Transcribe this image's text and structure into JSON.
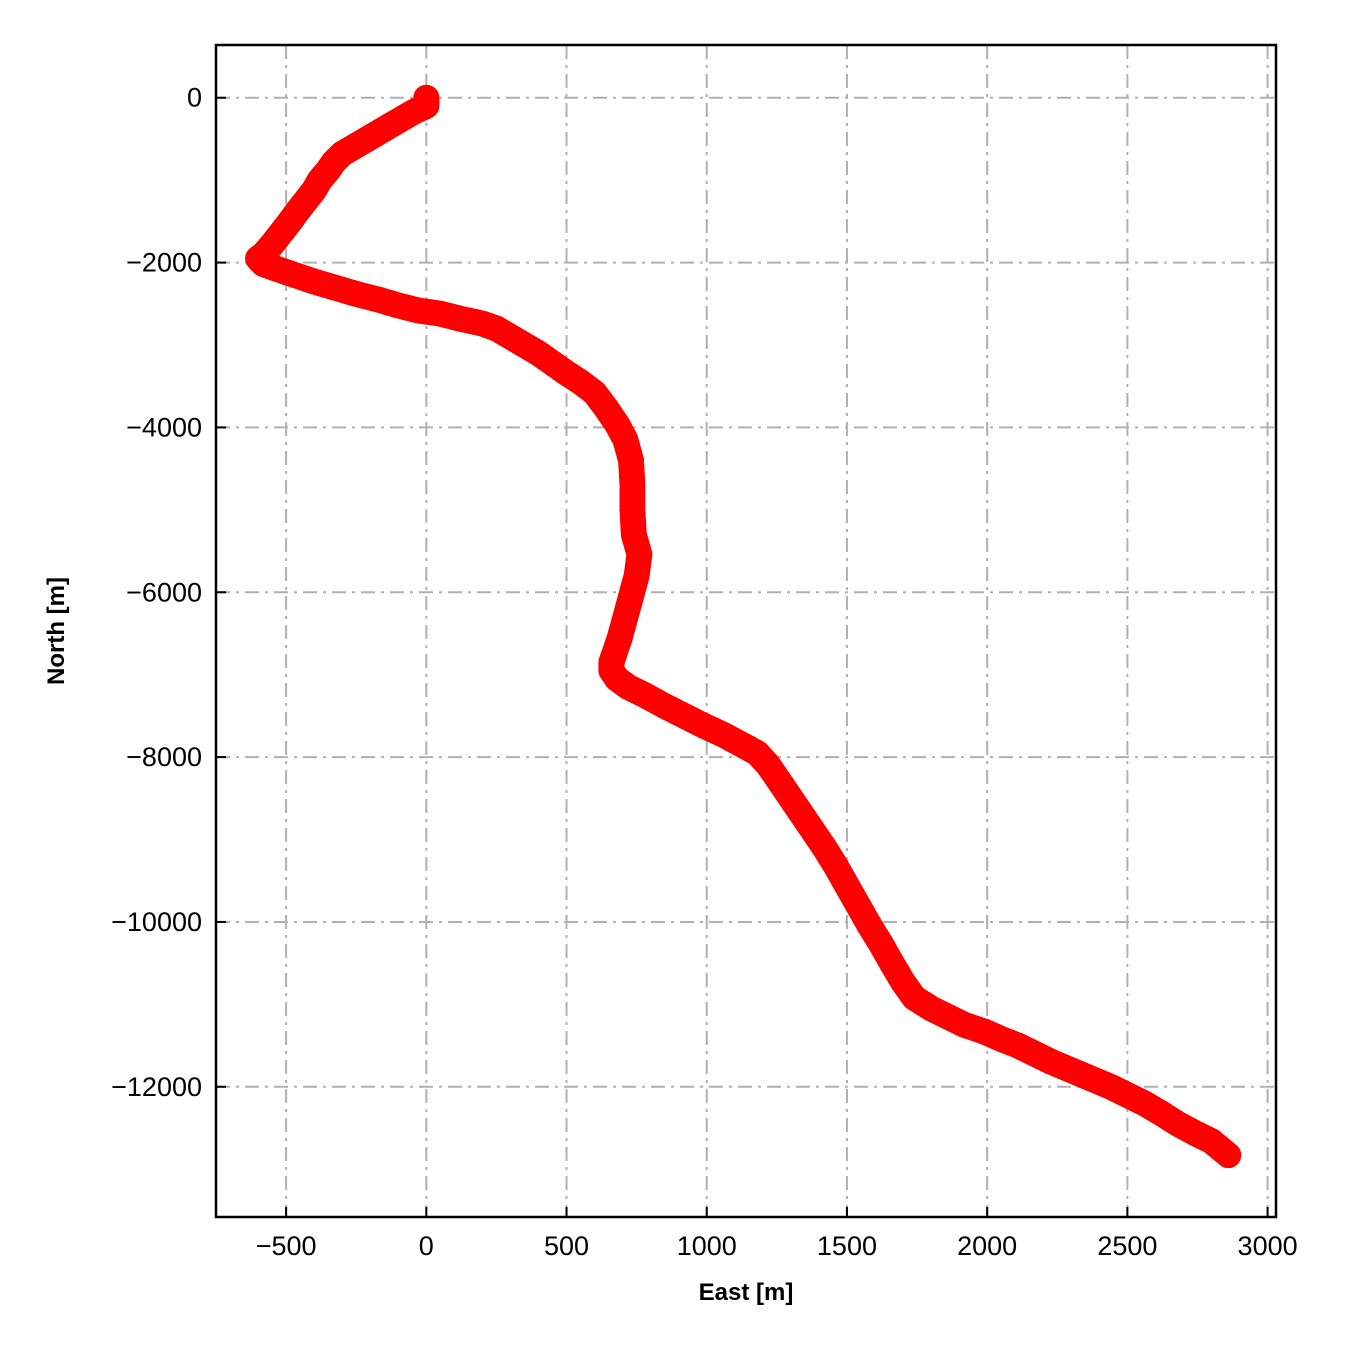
{
  "chart_data": {
    "type": "scatter",
    "xlabel": "East [m]",
    "ylabel": "North [m]",
    "xlim": [
      -750,
      3030
    ],
    "ylim": [
      -13580,
      640
    ],
    "x_ticks": [
      -500,
      0,
      500,
      1000,
      1500,
      2000,
      2500,
      3000
    ],
    "y_ticks": [
      0,
      -2000,
      -4000,
      -6000,
      -8000,
      -10000,
      -12000
    ],
    "x_tick_labels": [
      "−500",
      "0",
      "500",
      "1000",
      "1500",
      "2000",
      "2500",
      "3000"
    ],
    "y_tick_labels": [
      "0",
      "−2000",
      "−4000",
      "−6000",
      "−8000",
      "−10000",
      "−12000"
    ],
    "grid": true,
    "grid_style": "dash-dot",
    "legend": "none",
    "colors": {
      "series": "#ff0000",
      "grid": "#b0b0b0",
      "axes": "#000000"
    },
    "series": [
      {
        "x": [
          0,
          0,
          -50,
          -100,
          -150,
          -200,
          -250,
          -300,
          -330,
          -350,
          -380,
          -400,
          -430,
          -460,
          -490,
          -520,
          -550,
          -580,
          -600,
          -580,
          -530,
          -470,
          -400,
          -330,
          -250,
          -170,
          -100,
          -30,
          50,
          120,
          200,
          250,
          300,
          350,
          400,
          450,
          500,
          550,
          600,
          640,
          680,
          710,
          730,
          735,
          735,
          740,
          760,
          750,
          730,
          710,
          690,
          670,
          660,
          660,
          680,
          720,
          780,
          850,
          920,
          990,
          1060,
          1120,
          1180,
          1220,
          1260,
          1300,
          1340,
          1380,
          1420,
          1460,
          1500,
          1540,
          1580,
          1620,
          1660,
          1700,
          1740,
          1800,
          1860,
          1920,
          1990,
          2050,
          2110,
          2170,
          2230,
          2300,
          2370,
          2440,
          2500,
          2560,
          2620,
          2680,
          2740,
          2800,
          2860
        ],
        "y": [
          0,
          -100,
          -180,
          -280,
          -380,
          -480,
          -580,
          -680,
          -780,
          -880,
          -1000,
          -1120,
          -1250,
          -1380,
          -1520,
          -1650,
          -1780,
          -1900,
          -1950,
          -2020,
          -2080,
          -2150,
          -2230,
          -2300,
          -2380,
          -2450,
          -2520,
          -2580,
          -2620,
          -2680,
          -2740,
          -2800,
          -2900,
          -3000,
          -3100,
          -3220,
          -3340,
          -3450,
          -3580,
          -3760,
          -3960,
          -4150,
          -4400,
          -4700,
          -5000,
          -5300,
          -5540,
          -5800,
          -6050,
          -6300,
          -6550,
          -6750,
          -6850,
          -6950,
          -7050,
          -7150,
          -7250,
          -7380,
          -7500,
          -7620,
          -7730,
          -7840,
          -7950,
          -8100,
          -8300,
          -8500,
          -8700,
          -8900,
          -9100,
          -9320,
          -9560,
          -9800,
          -10040,
          -10260,
          -10500,
          -10730,
          -10920,
          -11050,
          -11150,
          -11250,
          -11330,
          -11420,
          -11500,
          -11600,
          -11700,
          -11800,
          -11900,
          -12000,
          -12100,
          -12200,
          -12320,
          -12450,
          -12560,
          -12660,
          -12830
        ]
      }
    ]
  }
}
